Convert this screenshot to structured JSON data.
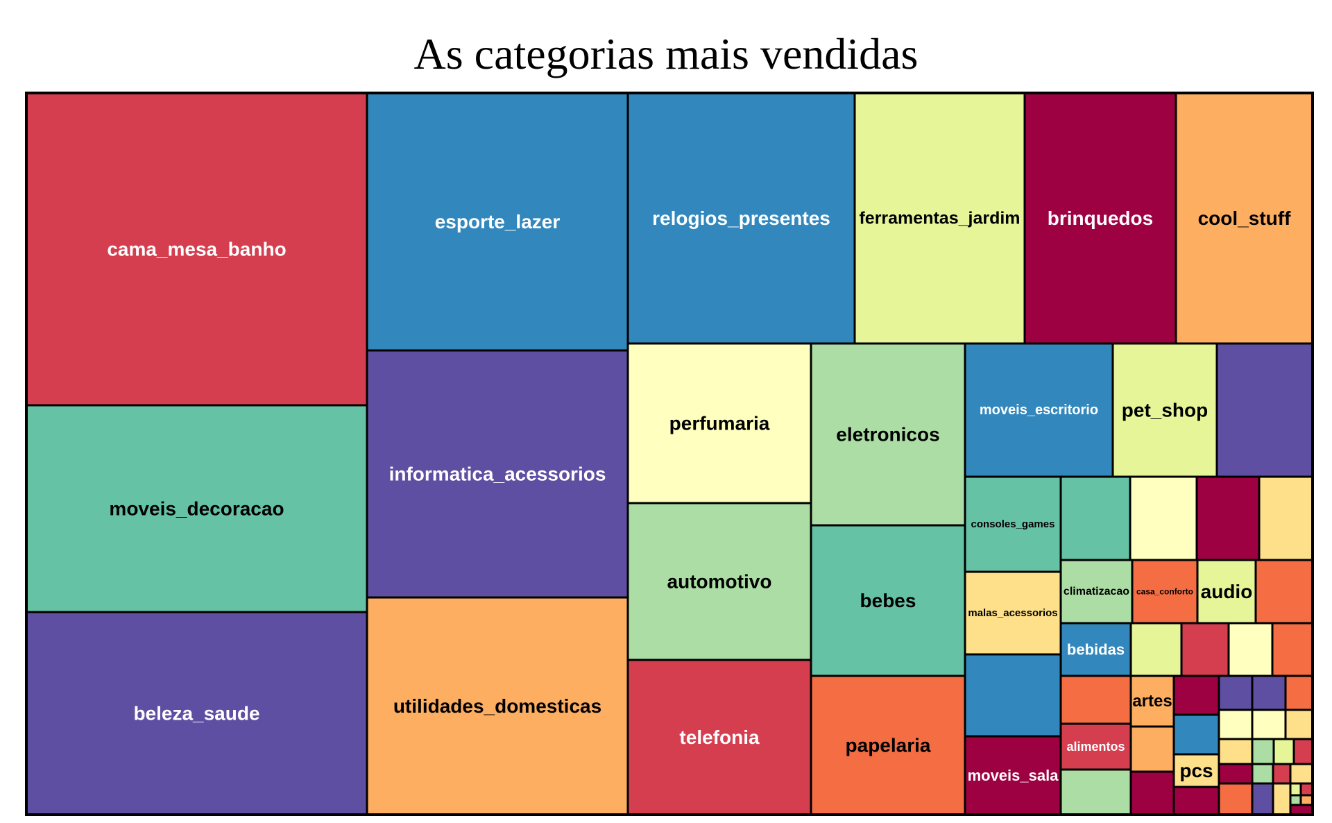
{
  "chart_data": {
    "type": "treemap",
    "title": "As categorias mais vendidas",
    "cells": [
      {
        "label": "cama_mesa_banho",
        "color": "#d53e4f",
        "text_color": "#ffffff",
        "font_size": 28
      },
      {
        "label": "moveis_decoracao",
        "color": "#66c2a5",
        "text_color": "#000000",
        "font_size": 28
      },
      {
        "label": "beleza_saude",
        "color": "#5e4fa2",
        "text_color": "#ffffff",
        "font_size": 28
      },
      {
        "label": "esporte_lazer",
        "color": "#3288bd",
        "text_color": "#ffffff",
        "font_size": 28
      },
      {
        "label": "informatica_acessorios",
        "color": "#5e4fa2",
        "text_color": "#ffffff",
        "font_size": 28
      },
      {
        "label": "utilidades_domesticas",
        "color": "#fdae61",
        "text_color": "#000000",
        "font_size": 28
      },
      {
        "label": "relogios_presentes",
        "color": "#3288bd",
        "text_color": "#ffffff",
        "font_size": 28
      },
      {
        "label": "ferramentas_jardim",
        "color": "#e6f598",
        "text_color": "#000000",
        "font_size": 25
      },
      {
        "label": "brinquedos",
        "color": "#9e0142",
        "text_color": "#ffffff",
        "font_size": 28
      },
      {
        "label": "cool_stuff",
        "color": "#fdae61",
        "text_color": "#000000",
        "font_size": 28
      },
      {
        "label": "perfumaria",
        "color": "#ffffbf",
        "text_color": "#000000",
        "font_size": 28
      },
      {
        "label": "automotivo",
        "color": "#abdda4",
        "text_color": "#000000",
        "font_size": 28
      },
      {
        "label": "telefonia",
        "color": "#d53e4f",
        "text_color": "#ffffff",
        "font_size": 28
      },
      {
        "label": "eletronicos",
        "color": "#abdda4",
        "text_color": "#000000",
        "font_size": 28
      },
      {
        "label": "bebes",
        "color": "#66c2a5",
        "text_color": "#000000",
        "font_size": 28
      },
      {
        "label": "papelaria",
        "color": "#f46d43",
        "text_color": "#000000",
        "font_size": 28
      },
      {
        "label": "moveis_escritorio",
        "color": "#3288bd",
        "text_color": "#ffffff",
        "font_size": 20
      },
      {
        "label": "pet_shop",
        "color": "#e6f598",
        "text_color": "#000000",
        "font_size": 28
      },
      {
        "label": "",
        "color": "#5e4fa2",
        "text_color": "#ffffff",
        "font_size": 0
      },
      {
        "label": "consoles_games",
        "color": "#66c2a5",
        "text_color": "#000000",
        "font_size": 15
      },
      {
        "label": "malas_acessorios",
        "color": "#fee08b",
        "text_color": "#000000",
        "font_size": 15
      },
      {
        "label": "",
        "color": "#3288bd",
        "text_color": "#ffffff",
        "font_size": 0
      },
      {
        "label": "moveis_sala",
        "color": "#9e0142",
        "text_color": "#ffffff",
        "font_size": 22
      },
      {
        "label": "",
        "color": "#66c2a5",
        "text_color": "#000000",
        "font_size": 0
      },
      {
        "label": "",
        "color": "#ffffbf",
        "text_color": "#000000",
        "font_size": 0
      },
      {
        "label": "",
        "color": "#9e0142",
        "text_color": "#ffffff",
        "font_size": 0
      },
      {
        "label": "",
        "color": "#fee08b",
        "text_color": "#000000",
        "font_size": 0
      },
      {
        "label": "climatizacao",
        "color": "#abdda4",
        "text_color": "#000000",
        "font_size": 16
      },
      {
        "label": "casa_conforto",
        "color": "#f46d43",
        "text_color": "#000000",
        "font_size": 12
      },
      {
        "label": "audio",
        "color": "#e6f598",
        "text_color": "#000000",
        "font_size": 28
      },
      {
        "label": "",
        "color": "#f46d43",
        "text_color": "#000000",
        "font_size": 0
      },
      {
        "label": "bebidas",
        "color": "#3288bd",
        "text_color": "#ffffff",
        "font_size": 22
      },
      {
        "label": "",
        "color": "#e6f598",
        "text_color": "#000000",
        "font_size": 0
      },
      {
        "label": "",
        "color": "#d53e4f",
        "text_color": "#ffffff",
        "font_size": 0
      },
      {
        "label": "",
        "color": "#ffffbf",
        "text_color": "#000000",
        "font_size": 0
      },
      {
        "label": "",
        "color": "#f46d43",
        "text_color": "#000000",
        "font_size": 0
      },
      {
        "label": "",
        "color": "#f46d43",
        "text_color": "#000000",
        "font_size": 0
      },
      {
        "label": "alimentos",
        "color": "#d53e4f",
        "text_color": "#ffffff",
        "font_size": 18
      },
      {
        "label": "",
        "color": "#abdda4",
        "text_color": "#000000",
        "font_size": 0
      },
      {
        "label": "artes",
        "color": "#fdae61",
        "text_color": "#000000",
        "font_size": 24
      },
      {
        "label": "",
        "color": "#9e0142",
        "text_color": "#ffffff",
        "font_size": 0
      },
      {
        "label": "",
        "color": "#fdae61",
        "text_color": "#000000",
        "font_size": 0
      },
      {
        "label": "",
        "color": "#9e0142",
        "text_color": "#ffffff",
        "font_size": 0
      },
      {
        "label": "",
        "color": "#3288bd",
        "text_color": "#ffffff",
        "font_size": 0
      },
      {
        "label": "pcs",
        "color": "#fee08b",
        "text_color": "#000000",
        "font_size": 28
      },
      {
        "label": "",
        "color": "#9e0142",
        "text_color": "#ffffff",
        "font_size": 0
      },
      {
        "label": "",
        "color": "#5e4fa2",
        "text_color": "#ffffff",
        "font_size": 0
      },
      {
        "label": "",
        "color": "#5e4fa2",
        "text_color": "#ffffff",
        "font_size": 0
      },
      {
        "label": "",
        "color": "#f46d43",
        "text_color": "#000000",
        "font_size": 0
      },
      {
        "label": "",
        "color": "#ffffbf",
        "text_color": "#000000",
        "font_size": 0
      },
      {
        "label": "",
        "color": "#ffffbf",
        "text_color": "#000000",
        "font_size": 0
      },
      {
        "label": "",
        "color": "#fee08b",
        "text_color": "#000000",
        "font_size": 0
      },
      {
        "label": "",
        "color": "#fee08b",
        "text_color": "#000000",
        "font_size": 0
      },
      {
        "label": "",
        "color": "#abdda4",
        "text_color": "#000000",
        "font_size": 0
      },
      {
        "label": "",
        "color": "#e6f598",
        "text_color": "#000000",
        "font_size": 0
      },
      {
        "label": "",
        "color": "#d53e4f",
        "text_color": "#ffffff",
        "font_size": 0
      },
      {
        "label": "",
        "color": "#9e0142",
        "text_color": "#ffffff",
        "font_size": 0
      },
      {
        "label": "",
        "color": "#abdda4",
        "text_color": "#000000",
        "font_size": 0
      },
      {
        "label": "",
        "color": "#d53e4f",
        "text_color": "#ffffff",
        "font_size": 0
      },
      {
        "label": "",
        "color": "#fee08b",
        "text_color": "#000000",
        "font_size": 0
      },
      {
        "label": "",
        "color": "#f46d43",
        "text_color": "#000000",
        "font_size": 0
      },
      {
        "label": "",
        "color": "#5e4fa2",
        "text_color": "#ffffff",
        "font_size": 0
      },
      {
        "label": "",
        "color": "#fee08b",
        "text_color": "#000000",
        "font_size": 0
      },
      {
        "label": "",
        "color": "#e6f598",
        "text_color": "#000000",
        "font_size": 0
      },
      {
        "label": "",
        "color": "#d53e4f",
        "text_color": "#ffffff",
        "font_size": 0
      },
      {
        "label": "",
        "color": "#abdda4",
        "text_color": "#000000",
        "font_size": 0
      },
      {
        "label": "",
        "color": "#fdae61",
        "text_color": "#000000",
        "font_size": 0
      },
      {
        "label": "",
        "color": "#9e0142",
        "text_color": "#ffffff",
        "font_size": 0
      }
    ]
  }
}
